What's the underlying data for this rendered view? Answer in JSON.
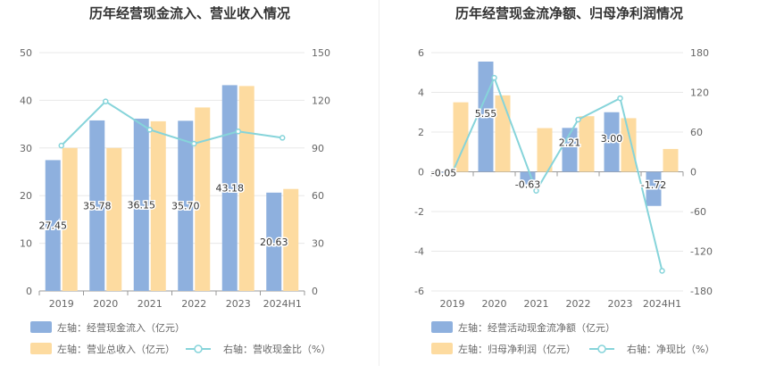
{
  "colors": {
    "bar1": "#8EB0DE",
    "bar2": "#FDDBA0",
    "line": "#86D4DA",
    "grid": "#E8E8E8",
    "axis": "#999999"
  },
  "chart_data": [
    {
      "type": "bar",
      "title": "历年经营现金流入、营业收入情况",
      "categories": [
        "2019",
        "2020",
        "2021",
        "2022",
        "2023",
        "2024H1"
      ],
      "left_axis": {
        "ylim": [
          0,
          50
        ],
        "ticks": [
          "0",
          "10",
          "20",
          "30",
          "40",
          "50"
        ]
      },
      "right_axis": {
        "ylim": [
          0,
          150
        ],
        "ticks": [
          "0",
          "30",
          "60",
          "90",
          "120",
          "150"
        ]
      },
      "series": [
        {
          "name": "左轴：经营现金流入（亿元）",
          "kind": "bar",
          "axis": "left",
          "values": [
            27.45,
            35.78,
            36.15,
            35.7,
            43.18,
            20.63
          ],
          "labels": [
            "27.45",
            "35.78",
            "36.15",
            "35.70",
            "43.18",
            "20.63"
          ]
        },
        {
          "name": "左轴：营业总收入（亿元）",
          "kind": "bar",
          "axis": "left",
          "values": [
            30.0,
            30.0,
            35.6,
            38.5,
            43.0,
            21.4
          ]
        },
        {
          "name": "右轴：营收现金比（%）",
          "kind": "line",
          "axis": "right",
          "values": [
            91.5,
            119.3,
            101.5,
            92.7,
            100.4,
            96.4
          ]
        }
      ],
      "legend": [
        "左轴：经营现金流入（亿元）",
        "左轴：营业总收入（亿元）",
        "右轴：营收现金比（%）"
      ]
    },
    {
      "type": "bar",
      "title": "历年经营现金流净额、归母净利润情况",
      "categories": [
        "2019",
        "2020",
        "2021",
        "2022",
        "2023",
        "2024H1"
      ],
      "left_axis": {
        "ylim": [
          -6,
          6
        ],
        "ticks": [
          "-6",
          "-4",
          "-2",
          "0",
          "2",
          "4",
          "6"
        ]
      },
      "right_axis": {
        "ylim": [
          -180,
          180
        ],
        "ticks": [
          "-180",
          "-120",
          "-60",
          "0",
          "60",
          "120",
          "180"
        ]
      },
      "series": [
        {
          "name": "左轴：经营活动现金流净额（亿元）",
          "kind": "bar",
          "axis": "left",
          "values": [
            -0.05,
            5.55,
            -0.63,
            2.21,
            3.0,
            -1.72
          ],
          "labels": [
            "-0.05",
            "5.55",
            "-0.63",
            "2.21",
            "3.00",
            "-1.72"
          ]
        },
        {
          "name": "左轴：归母净利润（亿元）",
          "kind": "bar",
          "axis": "left",
          "values": [
            3.5,
            3.85,
            2.2,
            2.8,
            2.7,
            1.15
          ]
        },
        {
          "name": "右轴：净现比（%）",
          "kind": "line",
          "axis": "right",
          "values": [
            -1.4,
            142.0,
            -28.6,
            78.9,
            111.1,
            -149.6
          ]
        }
      ],
      "legend": [
        "左轴：经营活动现金流净额（亿元）",
        "左轴：归母净利润（亿元）",
        "右轴：净现比（%）"
      ]
    }
  ]
}
